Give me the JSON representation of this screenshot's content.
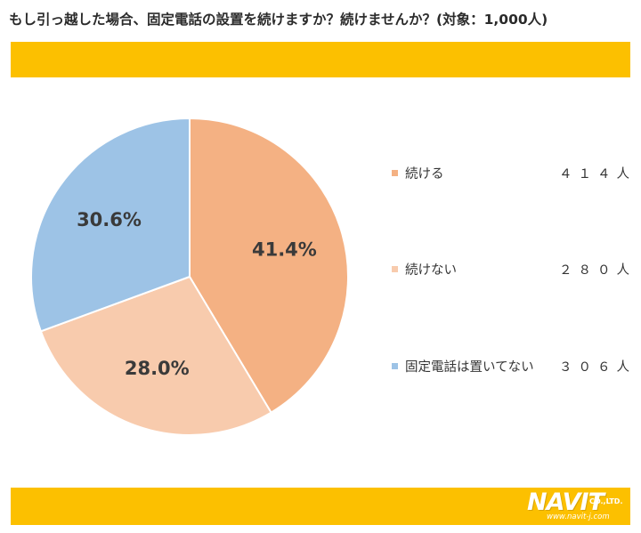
{
  "header": {
    "title": "もし引っ越した場合、固定電話の設置を続けますか？続けませんか？(対象：1,000人)"
  },
  "colors": {
    "band": "#fcc000",
    "background": "#ffffff",
    "slice_border": "#ffffff"
  },
  "chart_data": {
    "type": "pie",
    "title": "もし引っ越した場合、固定電話の設置を続けますか？続けませんか？(対象：1,000人)",
    "categories": [
      "続ける",
      "続けない",
      "固定電話は置いてない"
    ],
    "values": [
      414,
      280,
      306
    ],
    "value_labels": [
      "41.4%",
      "28.0%",
      "30.6%"
    ],
    "counts": [
      "４１４人",
      "２８０人",
      "３０６人"
    ],
    "colors": [
      "#f4b183",
      "#f8cbad",
      "#9dc3e6"
    ],
    "start_angle_deg": 0,
    "direction": "clockwise",
    "legend_position": "right"
  },
  "logo": {
    "text": "NAVIT",
    "sub": "CO.,LTD.",
    "url": "www.navit-j.com"
  }
}
